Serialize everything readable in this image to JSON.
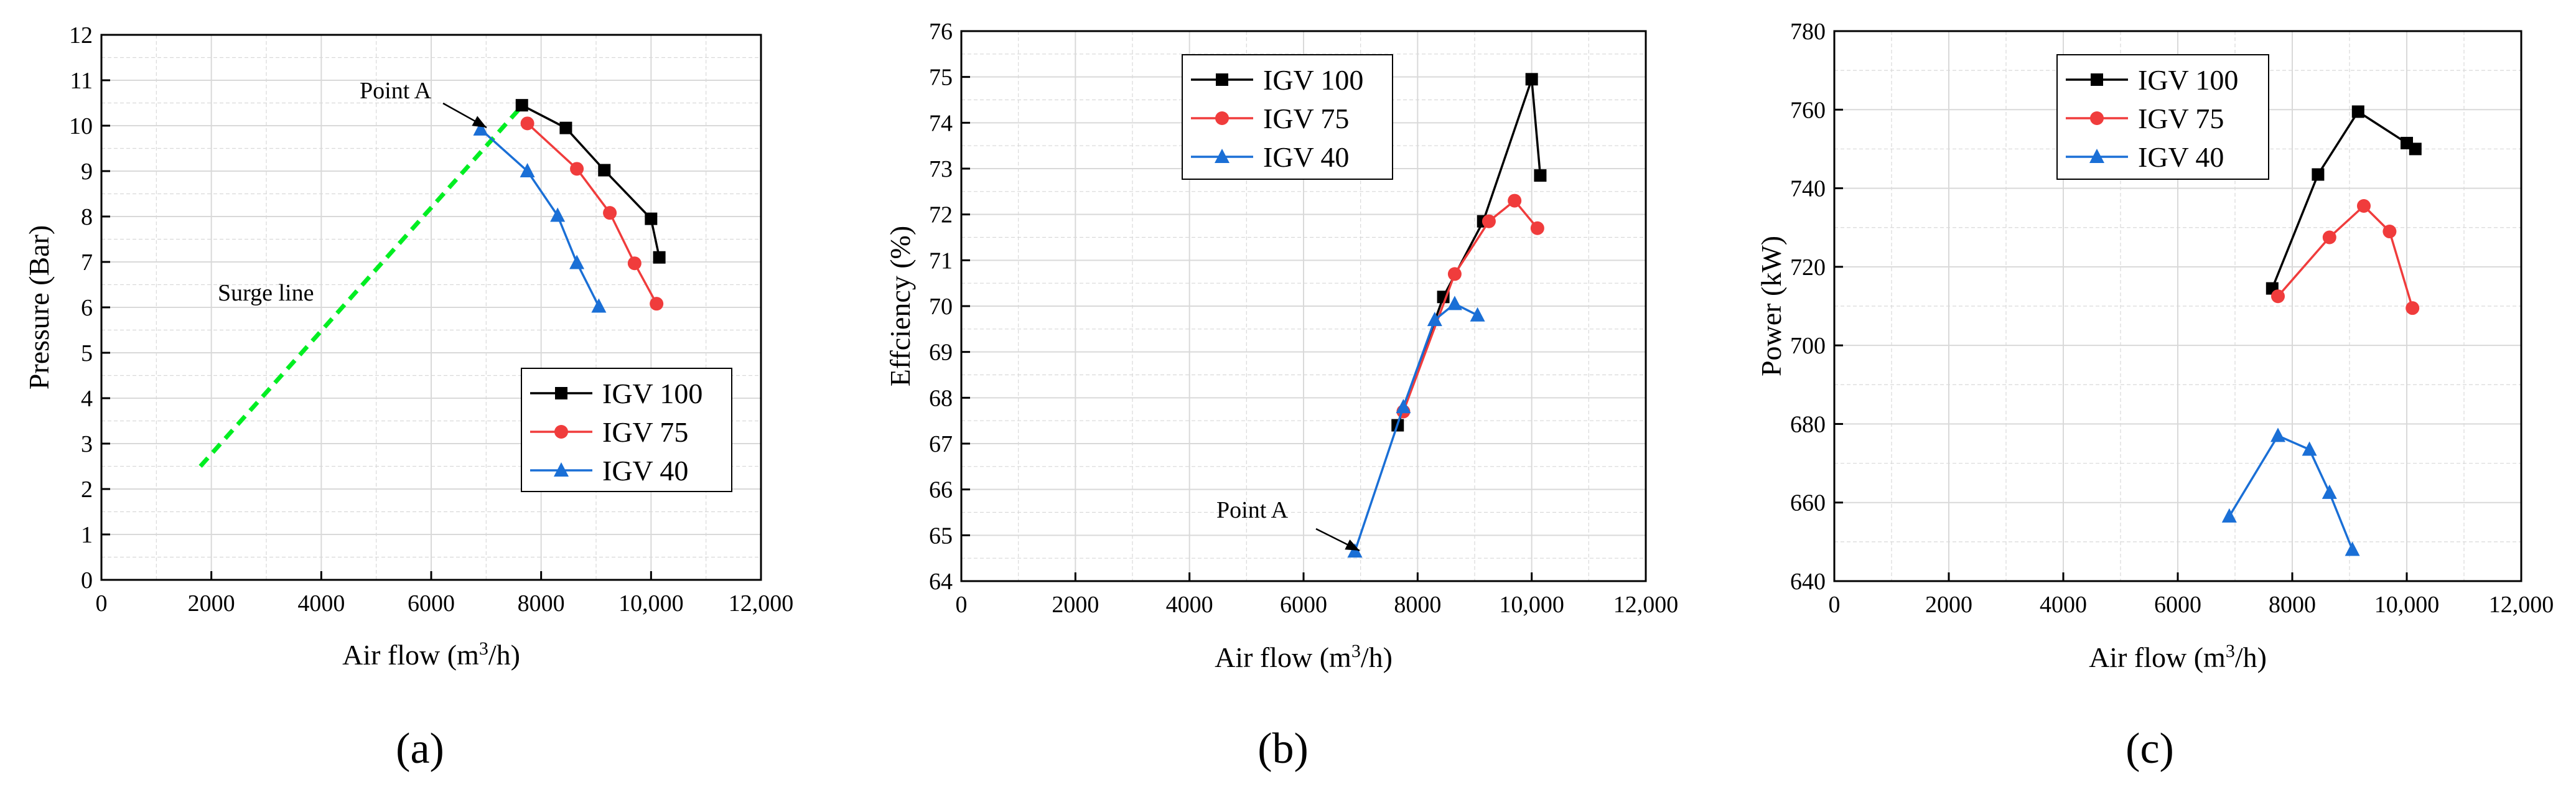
{
  "colors": {
    "series_black": "#000000",
    "series_red": "#f03c3c",
    "series_blue": "#1a6fd6",
    "surge": "#00ee22",
    "grid": "#d9d9d9"
  },
  "chart_data": [
    {
      "id": "a",
      "type": "line",
      "caption": "(a)",
      "xlabel": "Air flow (m3/h)",
      "xlabel_parts": {
        "pre": "Air flow (m",
        "sup": "3",
        "post": "/h)"
      },
      "ylabel": "Pressure (Bar)",
      "xlim": [
        0,
        12000
      ],
      "ylim": [
        0,
        12
      ],
      "xticks": [
        0,
        2000,
        4000,
        6000,
        8000,
        10000,
        12000
      ],
      "xtick_labels": [
        "0",
        "2000",
        "4000",
        "6000",
        "8000",
        "10,000",
        "12,000"
      ],
      "yticks": [
        0,
        1,
        2,
        3,
        4,
        5,
        6,
        7,
        8,
        9,
        10,
        11,
        12
      ],
      "ytick_labels": [
        "0",
        "1",
        "2",
        "3",
        "4",
        "5",
        "6",
        "7",
        "8",
        "9",
        "10",
        "11",
        "12"
      ],
      "grid": true,
      "legend_position": "bottom-right",
      "series": [
        {
          "name": "IGV 100",
          "color": "#000000",
          "marker": "square",
          "x": [
            7650,
            8450,
            9150,
            10000,
            10150
          ],
          "y": [
            10.45,
            9.95,
            9.02,
            7.95,
            7.1
          ]
        },
        {
          "name": "IGV 75",
          "color": "#f03c3c",
          "marker": "circle",
          "x": [
            7750,
            8650,
            9250,
            9700,
            10100
          ],
          "y": [
            10.05,
            9.05,
            8.08,
            6.97,
            6.08
          ]
        },
        {
          "name": "IGV 40",
          "color": "#1a6fd6",
          "marker": "triangle",
          "x": [
            6900,
            7750,
            8300,
            8650,
            9050
          ],
          "y": [
            9.92,
            9.0,
            8.02,
            6.98,
            6.02
          ]
        }
      ],
      "surge_line": {
        "label": "Surge line",
        "x": [
          1800,
          7700
        ],
        "y": [
          2.5,
          10.5
        ]
      },
      "annotations": [
        {
          "text": "Point A",
          "anchor": {
            "x": 6900,
            "y": 9.92
          }
        },
        {
          "text": "Surge line",
          "anchor": {
            "x": 1200,
            "y": 6.3
          }
        }
      ]
    },
    {
      "id": "b",
      "type": "line",
      "caption": "(b)",
      "xlabel": "Air flow (m3/h)",
      "xlabel_parts": {
        "pre": "Air flow (m",
        "sup": "3",
        "post": "/h)"
      },
      "ylabel": "Effciency (%)",
      "xlim": [
        0,
        12000
      ],
      "ylim": [
        64,
        76
      ],
      "xticks": [
        0,
        2000,
        4000,
        6000,
        8000,
        10000,
        12000
      ],
      "xtick_labels": [
        "0",
        "2000",
        "4000",
        "6000",
        "8000",
        "10,000",
        "12,000"
      ],
      "yticks": [
        64,
        65,
        66,
        67,
        68,
        69,
        70,
        71,
        72,
        73,
        74,
        75,
        76
      ],
      "ytick_labels": [
        "64",
        "65",
        "66",
        "67",
        "68",
        "69",
        "70",
        "71",
        "72",
        "73",
        "74",
        "75",
        "76"
      ],
      "grid": true,
      "legend_position": "top-left",
      "series": [
        {
          "name": "IGV 100",
          "color": "#000000",
          "marker": "square",
          "x": [
            7650,
            8450,
            9150,
            10000,
            10150
          ],
          "y": [
            67.4,
            70.2,
            71.85,
            74.95,
            72.85
          ]
        },
        {
          "name": "IGV 75",
          "color": "#f03c3c",
          "marker": "circle",
          "x": [
            7750,
            8650,
            9250,
            9700,
            10100
          ],
          "y": [
            67.7,
            70.7,
            71.85,
            72.3,
            71.7
          ]
        },
        {
          "name": "IGV 40",
          "color": "#1a6fd6",
          "marker": "triangle",
          "x": [
            6900,
            7750,
            8300,
            8650,
            9050
          ],
          "y": [
            64.65,
            67.8,
            69.7,
            70.05,
            69.8
          ]
        }
      ],
      "annotations": [
        {
          "text": "Point A",
          "anchor": {
            "x": 6900,
            "y": 64.65
          }
        }
      ]
    },
    {
      "id": "c",
      "type": "line",
      "caption": "(c)",
      "xlabel": "Air flow (m3/h)",
      "xlabel_parts": {
        "pre": "Air flow (m",
        "sup": "3",
        "post": "/h)"
      },
      "ylabel": "Power (kW)",
      "xlim": [
        0,
        12000
      ],
      "ylim": [
        640,
        780
      ],
      "xticks": [
        0,
        2000,
        4000,
        6000,
        8000,
        10000,
        12000
      ],
      "xtick_labels": [
        "0",
        "2000",
        "4000",
        "6000",
        "8000",
        "10,000",
        "12,000"
      ],
      "yticks": [
        640,
        660,
        680,
        700,
        720,
        740,
        760,
        780
      ],
      "ytick_labels": [
        "640",
        "660",
        "680",
        "700",
        "720",
        "740",
        "760",
        "780"
      ],
      "grid": true,
      "legend_position": "top-left",
      "series": [
        {
          "name": "IGV 100",
          "color": "#000000",
          "marker": "square",
          "x": [
            7650,
            8450,
            9150,
            10000,
            10150
          ],
          "y": [
            714.5,
            743.5,
            759.5,
            751.5,
            750
          ]
        },
        {
          "name": "IGV 75",
          "color": "#f03c3c",
          "marker": "circle",
          "x": [
            7750,
            8650,
            9250,
            9700,
            10100
          ],
          "y": [
            712.5,
            727.5,
            735.5,
            729,
            709.5
          ]
        },
        {
          "name": "IGV 40",
          "color": "#1a6fd6",
          "marker": "triangle",
          "x": [
            6900,
            7750,
            8300,
            8650,
            9050
          ],
          "y": [
            656.5,
            677,
            673.5,
            662.5,
            648
          ]
        }
      ],
      "annotations": []
    }
  ]
}
